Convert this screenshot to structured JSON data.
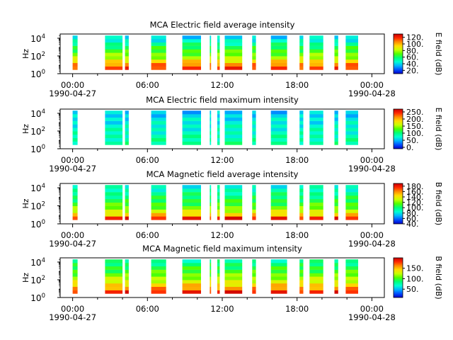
{
  "figure": {
    "background": "#ffffff",
    "colormap": [
      "#0000c8",
      "#0050ff",
      "#00b4ff",
      "#00ffd2",
      "#00ff78",
      "#50ff00",
      "#c8ff00",
      "#ffdc00",
      "#ff8c00",
      "#ff2800",
      "#c80000"
    ]
  },
  "chart_data": [
    {
      "type": "heatmap",
      "title": "MCA  Electric field average intensity",
      "ylabel": "Hz",
      "y_scale": "log",
      "ylim": [
        1,
        30000
      ],
      "y_ticks": [
        {
          "base": "10",
          "exp": "0"
        },
        {
          "base": "10",
          "exp": "2"
        },
        {
          "base": "10",
          "exp": "4"
        }
      ],
      "x_ticks": [
        "00:00",
        "06:00",
        "12:00",
        "18:00",
        "00:00"
      ],
      "x_dates": [
        "1990-04-27",
        "1990-04-28"
      ],
      "colorbar": {
        "label": "E field (dB)",
        "range": [
          10,
          130
        ],
        "ticks": [
          "120.",
          "100.",
          "80.",
          "60.",
          "40.",
          "20."
        ]
      },
      "data_hours": [
        [
          0,
          0.4
        ],
        [
          2.6,
          4.0
        ],
        [
          4.2,
          4.5
        ],
        [
          6.3,
          7.5
        ],
        [
          8.8,
          10.3
        ],
        [
          11.0,
          11.1
        ],
        [
          11.6,
          11.8
        ],
        [
          12.2,
          13.6
        ],
        [
          14.4,
          14.7
        ],
        [
          15.9,
          17.2
        ],
        [
          18.2,
          18.5
        ],
        [
          19.0,
          20.1
        ],
        [
          21.0,
          21.3
        ],
        [
          21.9,
          22.9
        ]
      ],
      "time_range_hours": [
        -1,
        25
      ]
    },
    {
      "type": "heatmap",
      "title": "MCA  Electric field maximum intensity",
      "ylabel": "Hz",
      "y_scale": "log",
      "ylim": [
        1,
        30000
      ],
      "y_ticks": [
        {
          "base": "10",
          "exp": "0"
        },
        {
          "base": "10",
          "exp": "2"
        },
        {
          "base": "10",
          "exp": "4"
        }
      ],
      "x_ticks": [
        "00:00",
        "06:00",
        "12:00",
        "18:00",
        "00:00"
      ],
      "x_dates": [
        "1990-04-27",
        "1990-04-28"
      ],
      "colorbar": {
        "label": "E field (dB)",
        "range": [
          -10,
          270
        ],
        "ticks": [
          "250.",
          "200.",
          "150.",
          "100.",
          "50.",
          "0."
        ]
      },
      "data_hours": [
        [
          0,
          0.4
        ],
        [
          2.6,
          4.0
        ],
        [
          4.2,
          4.5
        ],
        [
          6.3,
          7.5
        ],
        [
          8.8,
          10.3
        ],
        [
          11.0,
          11.1
        ],
        [
          11.6,
          11.8
        ],
        [
          12.2,
          13.6
        ],
        [
          14.4,
          14.7
        ],
        [
          15.9,
          17.2
        ],
        [
          18.2,
          18.5
        ],
        [
          19.0,
          20.1
        ],
        [
          21.0,
          21.3
        ],
        [
          21.9,
          22.9
        ]
      ],
      "time_range_hours": [
        -1,
        25
      ]
    },
    {
      "type": "heatmap",
      "title": "MCA  Magnetic field average intensity",
      "ylabel": "Hz",
      "y_scale": "log",
      "ylim": [
        1,
        30000
      ],
      "y_ticks": [
        {
          "base": "10",
          "exp": "0"
        },
        {
          "base": "10",
          "exp": "2"
        },
        {
          "base": "10",
          "exp": "4"
        }
      ],
      "x_ticks": [
        "00:00",
        "06:00",
        "12:00",
        "18:00",
        "00:00"
      ],
      "x_dates": [
        "1990-04-27",
        "1990-04-28"
      ],
      "colorbar": {
        "label": "B field (dB)",
        "range": [
          40,
          190
        ],
        "ticks": [
          "180.",
          "160.",
          "140.",
          "120.",
          "100.",
          "80.",
          "60.",
          "40."
        ]
      },
      "data_hours": [
        [
          0,
          0.4
        ],
        [
          2.6,
          4.0
        ],
        [
          4.2,
          4.5
        ],
        [
          6.3,
          7.5
        ],
        [
          8.8,
          10.3
        ],
        [
          11.0,
          11.1
        ],
        [
          11.6,
          11.8
        ],
        [
          12.2,
          13.6
        ],
        [
          14.4,
          14.7
        ],
        [
          15.9,
          17.2
        ],
        [
          18.2,
          18.5
        ],
        [
          19.0,
          20.1
        ],
        [
          21.0,
          21.3
        ],
        [
          21.9,
          22.9
        ]
      ],
      "time_range_hours": [
        -1,
        25
      ]
    },
    {
      "type": "heatmap",
      "title": "MCA  Magnetic field maximum intensity",
      "ylabel": "Hz",
      "y_scale": "log",
      "ylim": [
        1,
        30000
      ],
      "y_ticks": [
        {
          "base": "10",
          "exp": "0"
        },
        {
          "base": "10",
          "exp": "2"
        },
        {
          "base": "10",
          "exp": "4"
        }
      ],
      "x_ticks": [
        "00:00",
        "06:00",
        "12:00",
        "18:00",
        "00:00"
      ],
      "x_dates": [
        "1990-04-27",
        "1990-04-28"
      ],
      "colorbar": {
        "label": "B field (dB)",
        "range": [
          10,
          200
        ],
        "ticks": [
          "150.",
          "100.",
          "50."
        ]
      },
      "data_hours": [
        [
          0,
          0.4
        ],
        [
          2.6,
          4.0
        ],
        [
          4.2,
          4.5
        ],
        [
          6.3,
          7.5
        ],
        [
          8.8,
          10.3
        ],
        [
          11.0,
          11.1
        ],
        [
          11.6,
          11.8
        ],
        [
          12.2,
          13.6
        ],
        [
          14.4,
          14.7
        ],
        [
          15.9,
          17.2
        ],
        [
          18.2,
          18.5
        ],
        [
          19.0,
          20.1
        ],
        [
          21.0,
          21.3
        ],
        [
          21.9,
          22.9
        ]
      ],
      "time_range_hours": [
        -1,
        25
      ]
    }
  ]
}
